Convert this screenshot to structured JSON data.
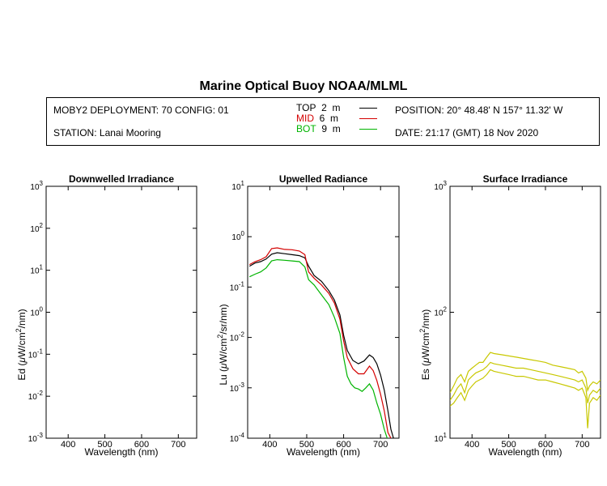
{
  "header": {
    "title": "Marine Optical Buoy NOAA/MLML",
    "deployment": "MOBY2 DEPLOYMENT: 70 CONFIG: 01",
    "station": "STATION: Lanai Mooring",
    "position": "POSITION: 20° 48.48' N   157° 11.32' W",
    "date": "DATE: 21:17 (GMT) 18 Nov 2020"
  },
  "legend": [
    {
      "name": "TOP",
      "depth": "2",
      "unit": "m",
      "color": "#000000"
    },
    {
      "name": "MID",
      "depth": "6",
      "unit": "m",
      "color": "#d40000"
    },
    {
      "name": "BOT",
      "depth": "9",
      "unit": "m",
      "color": "#00b400"
    }
  ],
  "chart_data": [
    {
      "type": "line",
      "title": "Downwelled Irradiance",
      "xlabel": "Wavelength (nm)",
      "ylabel": "Ed  (μW/cm²/nm)",
      "ylabel_parts": {
        "pre": "Ed  (",
        "mu": "μ",
        "mid": "W/cm",
        "sup": "2",
        "post": "/nm)"
      },
      "xlim": [
        340,
        750
      ],
      "ylim": [
        0.001,
        1000
      ],
      "yscale": "log",
      "xticks": [
        400,
        500,
        600,
        700
      ],
      "ytick_labels": [
        {
          "base": "10",
          "exp": "-3",
          "value": 0.001
        },
        {
          "base": "10",
          "exp": "-2",
          "value": 0.01
        },
        {
          "base": "10",
          "exp": "-1",
          "value": 0.1
        },
        {
          "base": "10",
          "exp": "0",
          "value": 1
        },
        {
          "base": "10",
          "exp": "1",
          "value": 10
        },
        {
          "base": "10",
          "exp": "2",
          "value": 100
        },
        {
          "base": "10",
          "exp": "3",
          "value": 1000
        }
      ],
      "series": []
    },
    {
      "type": "line",
      "title": "Upwelled Radiance",
      "xlabel": "Wavelength (nm)",
      "ylabel": "Lu  (μW/cm²/sr/nm)",
      "ylabel_parts": {
        "pre": "Lu  (",
        "mu": "μ",
        "mid": "W/cm",
        "sup": "2",
        "post": "/sr/nm)"
      },
      "xlim": [
        340,
        750
      ],
      "ylim": [
        0.0001,
        10
      ],
      "yscale": "log",
      "xticks": [
        400,
        500,
        600,
        700
      ],
      "ytick_labels": [
        {
          "base": "10",
          "exp": "-4",
          "value": 0.0001
        },
        {
          "base": "10",
          "exp": "-3",
          "value": 0.001
        },
        {
          "base": "10",
          "exp": "-2",
          "value": 0.01
        },
        {
          "base": "10",
          "exp": "-1",
          "value": 0.1
        },
        {
          "base": "10",
          "exp": "0",
          "value": 1
        },
        {
          "base": "10",
          "exp": "1",
          "value": 10
        }
      ],
      "series": [
        {
          "name": "TOP",
          "color": "#000000",
          "x": [
            345,
            360,
            375,
            390,
            405,
            420,
            440,
            460,
            480,
            495,
            505,
            520,
            540,
            560,
            575,
            590,
            600,
            610,
            625,
            640,
            655,
            670,
            680,
            690,
            700,
            710,
            720,
            728,
            735
          ],
          "y": [
            0.26,
            0.3,
            0.32,
            0.36,
            0.45,
            0.48,
            0.46,
            0.44,
            0.42,
            0.38,
            0.26,
            0.17,
            0.13,
            0.085,
            0.055,
            0.028,
            0.011,
            0.0055,
            0.0035,
            0.003,
            0.0034,
            0.0045,
            0.004,
            0.003,
            0.0018,
            0.0009,
            0.00035,
            0.00015,
            0.0001
          ]
        },
        {
          "name": "MID",
          "color": "#d40000",
          "x": [
            345,
            360,
            375,
            390,
            405,
            420,
            440,
            460,
            480,
            495,
            505,
            520,
            540,
            560,
            575,
            590,
            600,
            610,
            625,
            640,
            655,
            670,
            680,
            690,
            700,
            710,
            720,
            728
          ],
          "y": [
            0.28,
            0.32,
            0.35,
            0.4,
            0.58,
            0.6,
            0.56,
            0.55,
            0.52,
            0.44,
            0.2,
            0.15,
            0.11,
            0.075,
            0.048,
            0.023,
            0.0085,
            0.004,
            0.0024,
            0.0019,
            0.0019,
            0.0027,
            0.0022,
            0.0014,
            0.00075,
            0.00035,
            0.00013,
            0.0001
          ]
        },
        {
          "name": "BOT",
          "color": "#00b400",
          "x": [
            345,
            360,
            375,
            390,
            405,
            420,
            440,
            460,
            480,
            495,
            505,
            520,
            540,
            560,
            575,
            590,
            600,
            610,
            620,
            630,
            640,
            650,
            660,
            670,
            680,
            690,
            700,
            710,
            718
          ],
          "y": [
            0.16,
            0.18,
            0.2,
            0.24,
            0.33,
            0.35,
            0.34,
            0.33,
            0.32,
            0.25,
            0.14,
            0.11,
            0.07,
            0.045,
            0.025,
            0.012,
            0.004,
            0.0017,
            0.0012,
            0.001,
            0.00095,
            0.00085,
            0.001,
            0.0012,
            0.0009,
            0.0005,
            0.0003,
            0.00015,
            0.0001
          ]
        }
      ]
    },
    {
      "type": "line",
      "title": "Surface Irradiance",
      "xlabel": "Wavelength (nm)",
      "ylabel": "Es  (μW/cm²/nm)",
      "ylabel_parts": {
        "pre": "Es  (",
        "mu": "μ",
        "mid": "W/cm",
        "sup": "2",
        "post": "/nm)"
      },
      "xlim": [
        340,
        750
      ],
      "ylim": [
        10,
        1000
      ],
      "yscale": "log",
      "xticks": [
        400,
        500,
        600,
        700
      ],
      "ytick_labels": [
        {
          "base": "10",
          "exp": "1",
          "value": 10
        },
        {
          "base": "10",
          "exp": "2",
          "value": 100
        },
        {
          "base": "10",
          "exp": "3",
          "value": 1000
        }
      ],
      "series": [
        {
          "name": "Es-1",
          "color": "#c8c800",
          "x": [
            340,
            350,
            360,
            370,
            380,
            390,
            400,
            410,
            420,
            430,
            440,
            450,
            460,
            480,
            500,
            520,
            540,
            560,
            580,
            600,
            620,
            640,
            660,
            680,
            690,
            700,
            710,
            715,
            720,
            730,
            740,
            750
          ],
          "y": [
            23,
            26,
            30,
            32,
            28,
            34,
            36,
            38,
            40,
            40,
            44,
            48,
            47,
            46,
            45,
            44,
            43,
            42,
            41,
            40,
            38,
            37,
            36,
            35,
            33,
            34,
            30,
            24,
            26,
            28,
            27,
            29
          ]
        },
        {
          "name": "Es-2",
          "color": "#c8c800",
          "x": [
            340,
            350,
            360,
            370,
            380,
            390,
            400,
            410,
            420,
            430,
            440,
            450,
            460,
            480,
            500,
            520,
            540,
            560,
            580,
            600,
            620,
            640,
            660,
            680,
            690,
            700,
            710,
            715,
            720,
            730,
            740,
            750
          ],
          "y": [
            20,
            22,
            25,
            27,
            23,
            29,
            31,
            33,
            34,
            35,
            37,
            40,
            39,
            38,
            37,
            36,
            36,
            35,
            34,
            33,
            32,
            31,
            30,
            29,
            28,
            29,
            25,
            19,
            22,
            24,
            23,
            25
          ]
        },
        {
          "name": "Es-3",
          "color": "#c8c800",
          "x": [
            340,
            350,
            360,
            370,
            380,
            390,
            400,
            410,
            420,
            430,
            440,
            450,
            460,
            480,
            500,
            520,
            540,
            560,
            580,
            600,
            620,
            640,
            660,
            680,
            690,
            700,
            710,
            715,
            720,
            730,
            740,
            750
          ],
          "y": [
            18,
            19,
            21,
            23,
            20,
            24,
            26,
            28,
            29,
            30,
            32,
            35,
            34,
            33,
            32,
            31,
            31,
            30,
            29,
            29,
            28,
            27,
            26,
            25,
            24,
            25,
            21,
            12,
            19,
            21,
            20,
            22
          ]
        }
      ]
    }
  ]
}
